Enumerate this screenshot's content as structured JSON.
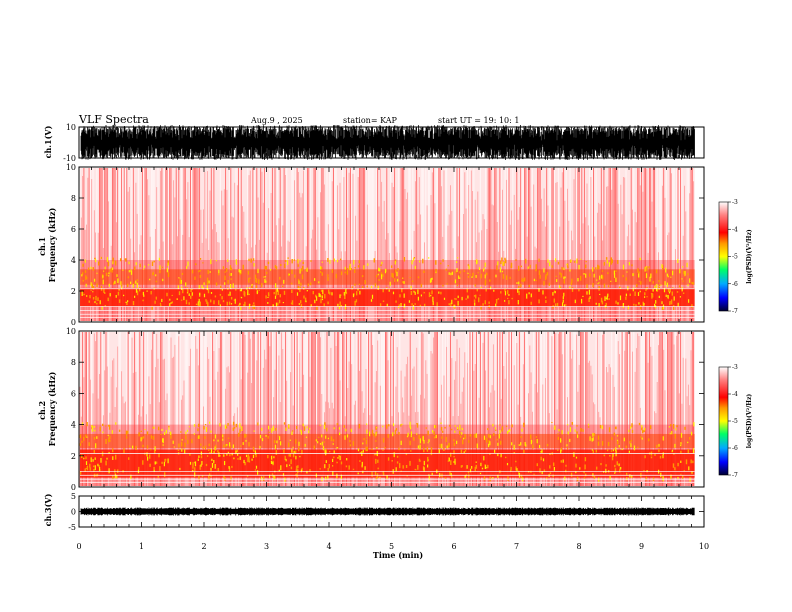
{
  "chart_data": {
    "type": "heatmap",
    "header": {
      "title": "VLF Spectra",
      "date": "Aug.9 , 2025",
      "station": "station= KAP",
      "start": "start UT = 19: 10: 1"
    },
    "xlabel": "Time (min)",
    "xlim": [
      0,
      10
    ],
    "xticks": [
      "0",
      "1",
      "2",
      "3",
      "4",
      "5",
      "6",
      "7",
      "8",
      "9",
      "10"
    ],
    "data_end_min": 9.85,
    "panels": [
      {
        "id": "ch1_waveform",
        "type": "waveform",
        "ylabel": "ch.1(V)",
        "ylim": [
          -10,
          10
        ],
        "yticks": [
          "10",
          "-10"
        ],
        "amplitude": "clipped",
        "color": "#000000"
      },
      {
        "id": "ch1_spectrogram",
        "type": "spectrogram",
        "ylabel": "ch.1\nFrequency (kHz)",
        "ylim": [
          0,
          10
        ],
        "yticks": [
          "0",
          "2",
          "4",
          "6",
          "8",
          "10"
        ],
        "intense_band_khz": [
          1,
          2.2
        ],
        "sferic_band_khz": [
          2.4,
          3.4
        ]
      },
      {
        "id": "ch2_spectrogram",
        "type": "spectrogram",
        "ylabel": "ch.2\nFrequency (kHz)",
        "ylim": [
          0,
          10
        ],
        "yticks": [
          "0",
          "2",
          "4",
          "6",
          "8",
          "10"
        ],
        "intense_band_khz": [
          0.6,
          2.4
        ],
        "sferic_band_khz": [
          2.5,
          3.4
        ]
      },
      {
        "id": "ch3_waveform",
        "type": "waveform",
        "ylabel": "ch.3(V)",
        "ylim": [
          -5,
          5
        ],
        "yticks": [
          "5",
          "0",
          "-5"
        ],
        "amplitude": "low",
        "color": "#000000"
      }
    ],
    "colorbar": {
      "label": "log(PSD)(V²/Hz)",
      "range": [
        -7,
        -3
      ],
      "ticks": [
        "-3",
        "-4",
        "-5",
        "-6",
        "-7"
      ],
      "colors": [
        "#000033",
        "#0000ff",
        "#00aaff",
        "#00ff66",
        "#ffff00",
        "#ff9900",
        "#ff0000",
        "#ff8080",
        "#ffffff"
      ]
    }
  }
}
